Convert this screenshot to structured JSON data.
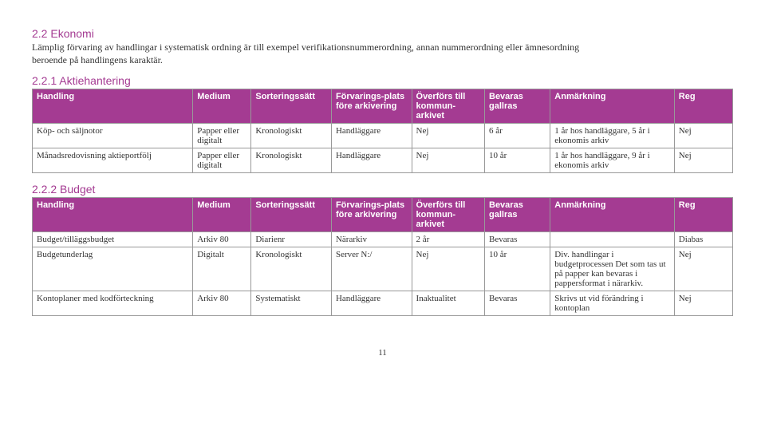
{
  "section": {
    "heading": "2.2 Ekonomi",
    "intro": "Lämplig förvaring av handlingar i systematisk ordning är till exempel verifikationsnummerordning, annan nummerordning eller ämnesordning beroende på handlingens karaktär."
  },
  "columns": [
    "Handling",
    "Medium",
    "Sorteringssätt",
    "Förvarings-plats före arkivering",
    "Överförs till kommun-arkivet",
    "Bevaras gallras",
    "Anmärkning",
    "Reg"
  ],
  "tables": [
    {
      "heading": "2.2.1 Aktiehantering",
      "rows": [
        [
          "Köp- och säljnotor",
          "Papper eller digitalt",
          "Kronologiskt",
          "Handläggare",
          "Nej",
          "6 år",
          "1 år hos handläggare, 5 år i ekonomis arkiv",
          "Nej"
        ],
        [
          "Månadsredovisning aktieportfölj",
          "Papper eller digitalt",
          "Kronologiskt",
          "Handläggare",
          "Nej",
          "10 år",
          "1 år hos handläggare, 9 år i ekonomis arkiv",
          "Nej"
        ]
      ]
    },
    {
      "heading": "2.2.2 Budget",
      "rows": [
        [
          "Budget/tilläggsbudget",
          "Arkiv 80",
          "Diarienr",
          "Närarkiv",
          "2 år",
          "Bevaras",
          "",
          "Diabas"
        ],
        [
          "Budgetunderlag",
          "Digitalt",
          "Kronologiskt",
          "Server N:/",
          "Nej",
          "10 år",
          "Div. handlingar i budgetprocessen Det som tas ut på papper kan bevaras i pappersformat i närarkiv.",
          "Nej"
        ],
        [
          "Kontoplaner med kodförteckning",
          "Arkiv 80",
          "Systematiskt",
          "Handläggare",
          "Inaktualitet",
          "Bevaras",
          "Skrivs ut vid förändring i kontoplan",
          "Nej"
        ]
      ]
    }
  ],
  "pagenum": "11"
}
